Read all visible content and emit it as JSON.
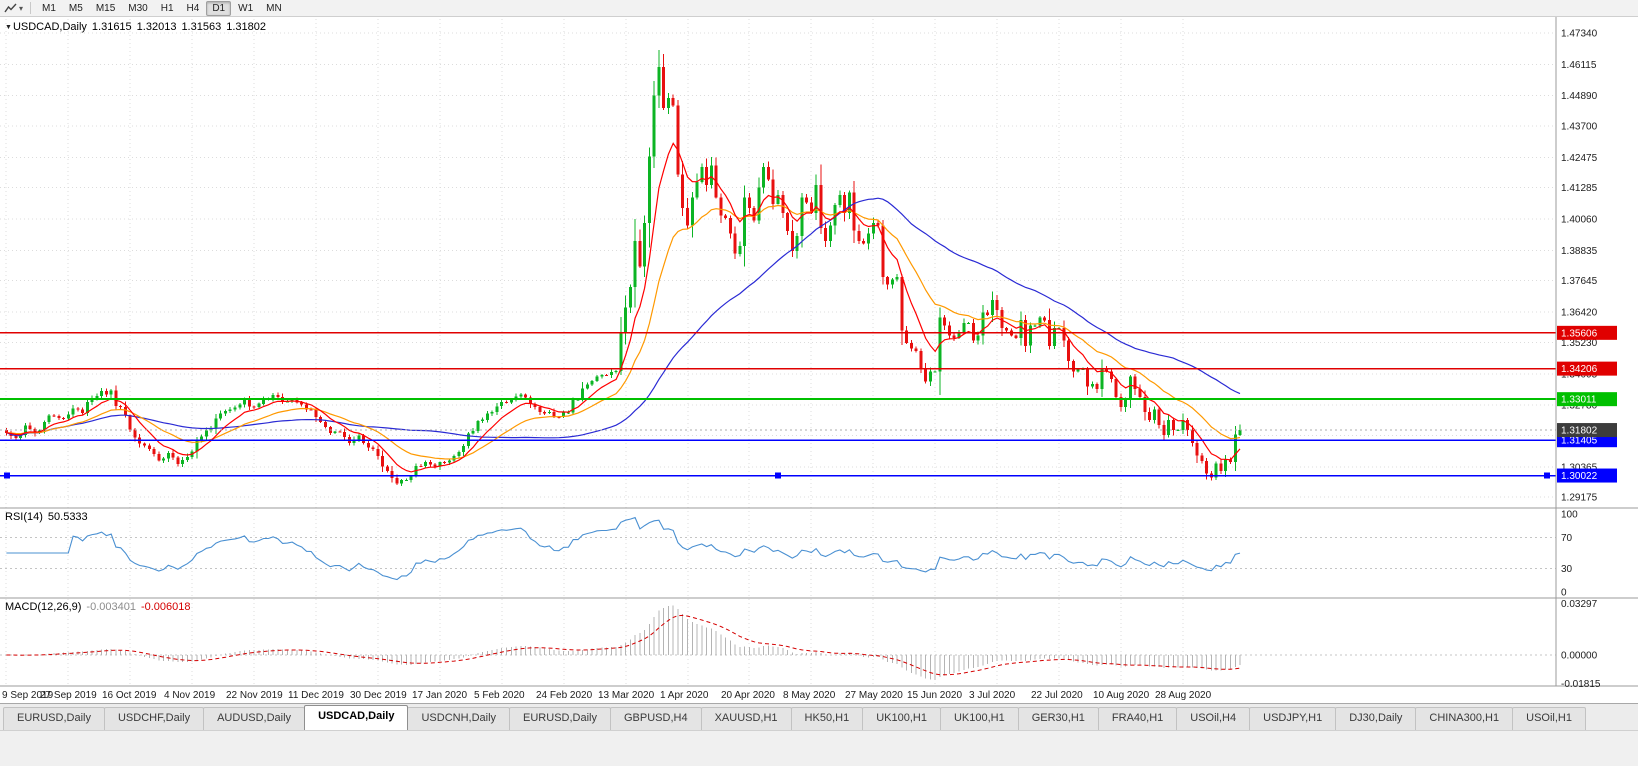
{
  "toolbar": {
    "timeframes": [
      "M1",
      "M5",
      "M15",
      "M30",
      "H1",
      "H4",
      "D1",
      "W1",
      "MN"
    ],
    "active_timeframe": "D1"
  },
  "chart_header": {
    "symbol": "USDCAD,Daily",
    "open": "1.31615",
    "high": "1.32013",
    "low": "1.31563",
    "close": "1.31802"
  },
  "rsi": {
    "label": "RSI(14)",
    "value": "50.5333",
    "axis_labels": [
      "100",
      "70",
      "30",
      "0"
    ],
    "levels": [
      70,
      30
    ],
    "color": "#4a90d2"
  },
  "macd": {
    "label": "MACD(12,26,9)",
    "main_value": "-0.003401",
    "signal_value": "-0.006018",
    "axis_labels": [
      "0.03297",
      "0.00000",
      "-0.01815"
    ],
    "histogram_color": "#b4b4b4",
    "signal_color": "#d40000"
  },
  "tabs": {
    "items": [
      "EURUSD,Daily",
      "USDCHF,Daily",
      "AUDUSD,Daily",
      "USDCAD,Daily",
      "USDCNH,Daily",
      "EURUSD,Daily",
      "GBPUSD,H4",
      "XAUUSD,H1",
      "HK50,H1",
      "UK100,H1",
      "UK100,H1",
      "GER30,H1",
      "FRA40,H1",
      "USOil,H4",
      "USDJPY,H1",
      "DJ30,Daily",
      "CHINA300,H1",
      "USOil,H1"
    ],
    "active": "USDCAD,Daily"
  },
  "chart_data": {
    "type": "candlestick",
    "title": "USDCAD,Daily",
    "x_labels": [
      "9 Sep 2019",
      "27 Sep 2019",
      "16 Oct 2019",
      "4 Nov 2019",
      "22 Nov 2019",
      "11 Dec 2019",
      "30 Dec 2019",
      "17 Jan 2020",
      "5 Feb 2020",
      "24 Feb 2020",
      "13 Mar 2020",
      "1 Apr 2020",
      "20 Apr 2020",
      "8 May 2020",
      "27 May 2020",
      "15 Jun 2020",
      "3 Jul 2020",
      "22 Jul 2020",
      "10 Aug 2020",
      "28 Aug 2020"
    ],
    "x_label_indices": [
      0,
      13,
      26,
      39,
      52,
      65,
      78,
      91,
      104,
      117,
      130,
      143,
      156,
      169,
      182,
      195,
      208,
      221,
      234,
      247
    ],
    "y_ticks": [
      "1.47340",
      "1.46115",
      "1.44890",
      "1.43700",
      "1.42475",
      "1.41285",
      "1.40060",
      "1.38835",
      "1.37645",
      "1.36420",
      "1.35230",
      "1.34005",
      "1.32780",
      "1.31590",
      "1.30365",
      "1.29175"
    ],
    "y_range": [
      1.2883,
      1.4777
    ],
    "bars_count": 260,
    "total_slots": 325,
    "up_color": "#0cb424",
    "down_color": "#e81010",
    "closes_keypoints": [
      [
        0,
        1.317
      ],
      [
        2,
        1.315
      ],
      [
        4,
        1.3188
      ],
      [
        6,
        1.3162
      ],
      [
        8,
        1.3208
      ],
      [
        10,
        1.3242
      ],
      [
        12,
        1.3228
      ],
      [
        14,
        1.3262
      ],
      [
        16,
        1.3248
      ],
      [
        18,
        1.3302
      ],
      [
        20,
        1.333
      ],
      [
        22,
        1.3318
      ],
      [
        24,
        1.3255
      ],
      [
        26,
        1.3195
      ],
      [
        28,
        1.3132
      ],
      [
        30,
        1.3096
      ],
      [
        32,
        1.3066
      ],
      [
        34,
        1.3082
      ],
      [
        36,
        1.3056
      ],
      [
        38,
        1.3082
      ],
      [
        40,
        1.314
      ],
      [
        42,
        1.3172
      ],
      [
        44,
        1.3228
      ],
      [
        46,
        1.3252
      ],
      [
        48,
        1.3272
      ],
      [
        50,
        1.329
      ],
      [
        52,
        1.327
      ],
      [
        54,
        1.33
      ],
      [
        56,
        1.3312
      ],
      [
        58,
        1.3296
      ],
      [
        60,
        1.3302
      ],
      [
        62,
        1.3282
      ],
      [
        64,
        1.3252
      ],
      [
        66,
        1.3228
      ],
      [
        68,
        1.3172
      ],
      [
        70,
        1.3162
      ],
      [
        72,
        1.3132
      ],
      [
        74,
        1.3162
      ],
      [
        76,
        1.3122
      ],
      [
        78,
        1.3082
      ],
      [
        80,
        1.3012
      ],
      [
        82,
        1.2962
      ],
      [
        84,
        1.2992
      ],
      [
        86,
        1.3032
      ],
      [
        88,
        1.3052
      ],
      [
        90,
        1.3042
      ],
      [
        92,
        1.3056
      ],
      [
        94,
        1.3082
      ],
      [
        96,
        1.3122
      ],
      [
        98,
        1.3182
      ],
      [
        100,
        1.3232
      ],
      [
        102,
        1.3262
      ],
      [
        104,
        1.3292
      ],
      [
        106,
        1.3292
      ],
      [
        108,
        1.3322
      ],
      [
        110,
        1.3292
      ],
      [
        112,
        1.3256
      ],
      [
        114,
        1.3246
      ],
      [
        116,
        1.3232
      ],
      [
        118,
        1.3262
      ],
      [
        120,
        1.3312
      ],
      [
        122,
        1.3352
      ],
      [
        124,
        1.3392
      ],
      [
        126,
        1.3402
      ],
      [
        128,
        1.3412
      ],
      [
        129,
        1.356
      ],
      [
        130,
        1.366
      ],
      [
        131,
        1.374
      ],
      [
        132,
        1.392
      ],
      [
        133,
        1.382
      ],
      [
        134,
        1.399
      ],
      [
        135,
        1.425
      ],
      [
        136,
        1.449
      ],
      [
        137,
        1.46
      ],
      [
        138,
        1.444
      ],
      [
        139,
        1.448
      ],
      [
        140,
        1.445
      ],
      [
        141,
        1.418
      ],
      [
        142,
        1.405
      ],
      [
        143,
        1.398
      ],
      [
        144,
        1.409
      ],
      [
        145,
        1.415
      ],
      [
        146,
        1.421
      ],
      [
        147,
        1.414
      ],
      [
        148,
        1.4215
      ],
      [
        149,
        1.409
      ],
      [
        150,
        1.402
      ],
      [
        151,
        1.401
      ],
      [
        152,
        1.395
      ],
      [
        153,
        1.387
      ],
      [
        154,
        1.39
      ],
      [
        155,
        1.409
      ],
      [
        156,
        1.405
      ],
      [
        157,
        1.4
      ],
      [
        158,
        1.413
      ],
      [
        159,
        1.421
      ],
      [
        160,
        1.416
      ],
      [
        161,
        1.4065
      ],
      [
        162,
        1.41
      ],
      [
        163,
        1.403
      ],
      [
        164,
        1.396
      ],
      [
        165,
        1.388
      ],
      [
        166,
        1.394
      ],
      [
        167,
        1.409
      ],
      [
        168,
        1.407
      ],
      [
        169,
        1.403
      ],
      [
        170,
        1.414
      ],
      [
        171,
        1.397
      ],
      [
        172,
        1.392
      ],
      [
        173,
        1.398
      ],
      [
        174,
        1.406
      ],
      [
        175,
        1.41
      ],
      [
        176,
        1.403
      ],
      [
        177,
        1.411
      ],
      [
        178,
        1.396
      ],
      [
        179,
        1.392
      ],
      [
        180,
        1.391
      ],
      [
        181,
        1.395
      ],
      [
        182,
        1.399
      ],
      [
        183,
        1.398
      ],
      [
        184,
        1.378
      ],
      [
        185,
        1.375
      ],
      [
        186,
        1.377
      ],
      [
        187,
        1.378
      ],
      [
        188,
        1.357
      ],
      [
        189,
        1.352
      ],
      [
        190,
        1.35
      ],
      [
        191,
        1.349
      ],
      [
        192,
        1.342
      ],
      [
        193,
        1.337
      ],
      [
        194,
        1.341
      ],
      [
        195,
        1.341
      ],
      [
        196,
        1.362
      ],
      [
        197,
        1.359
      ],
      [
        198,
        1.355
      ],
      [
        199,
        1.354
      ],
      [
        200,
        1.356
      ],
      [
        201,
        1.36
      ],
      [
        202,
        1.36
      ],
      [
        203,
        1.353
      ],
      [
        204,
        1.355
      ],
      [
        205,
        1.364
      ],
      [
        206,
        1.363
      ],
      [
        207,
        1.369
      ],
      [
        208,
        1.365
      ],
      [
        209,
        1.358
      ],
      [
        210,
        1.357
      ],
      [
        211,
        1.355
      ],
      [
        212,
        1.354
      ],
      [
        213,
        1.361
      ],
      [
        214,
        1.351
      ],
      [
        215,
        1.359
      ],
      [
        216,
        1.359
      ],
      [
        217,
        1.362
      ],
      [
        218,
        1.361
      ],
      [
        219,
        1.351
      ],
      [
        220,
        1.358
      ],
      [
        221,
        1.358
      ],
      [
        222,
        1.353
      ],
      [
        223,
        1.345
      ],
      [
        224,
        1.341
      ],
      [
        225,
        1.342
      ],
      [
        226,
        1.342
      ],
      [
        227,
        1.335
      ],
      [
        228,
        1.336
      ],
      [
        229,
        1.334
      ],
      [
        230,
        1.342
      ],
      [
        231,
        1.341
      ],
      [
        232,
        1.338
      ],
      [
        233,
        1.331
      ],
      [
        234,
        1.327
      ],
      [
        235,
        1.33
      ],
      [
        236,
        1.339
      ],
      [
        237,
        1.334
      ],
      [
        238,
        1.331
      ],
      [
        239,
        1.325
      ],
      [
        240,
        1.322
      ],
      [
        241,
        1.326
      ],
      [
        242,
        1.32
      ],
      [
        243,
        1.316
      ],
      [
        244,
        1.322
      ],
      [
        245,
        1.318
      ],
      [
        246,
        1.318
      ],
      [
        247,
        1.322
      ],
      [
        248,
        1.318
      ],
      [
        249,
        1.313
      ],
      [
        250,
        1.308
      ],
      [
        251,
        1.306
      ],
      [
        252,
        1.301
      ],
      [
        253,
        1.2995
      ],
      [
        254,
        1.305
      ],
      [
        255,
        1.302
      ],
      [
        256,
        1.3065
      ],
      [
        257,
        1.3055
      ],
      [
        258,
        1.3162
      ],
      [
        259,
        1.31802
      ]
    ],
    "last_bar": {
      "open": 1.31615,
      "high": 1.32013,
      "low": 1.31563,
      "close": 1.31802
    },
    "peak_bar": {
      "index": 137,
      "high": 1.4668
    },
    "moving_averages": [
      {
        "type": "ema",
        "period": 8,
        "color": "#ff0000"
      },
      {
        "type": "ema",
        "period": 21,
        "color": "#ff9900"
      },
      {
        "type": "sma",
        "period": 50,
        "color": "#2a2ad4"
      }
    ],
    "hlines": [
      {
        "price": 1.35606,
        "label": "1.35606",
        "color": "#e00000"
      },
      {
        "price": 1.34206,
        "label": "1.34206",
        "color": "#e00000"
      },
      {
        "price": 1.33011,
        "label": "1.33011",
        "color": "#00c000",
        "width": 2
      },
      {
        "price": 1.31405,
        "label": "1.31405",
        "color": "#0000ff"
      },
      {
        "price": 1.30022,
        "label": "1.30022",
        "color": "#0000ff",
        "selected": true
      }
    ],
    "current_price": {
      "value": 1.31802,
      "label": "1.31802",
      "badge_color": "#3c3c3c"
    },
    "rsi_period": 14,
    "macd_params": {
      "fast": 12,
      "slow": 26,
      "signal": 9
    }
  }
}
